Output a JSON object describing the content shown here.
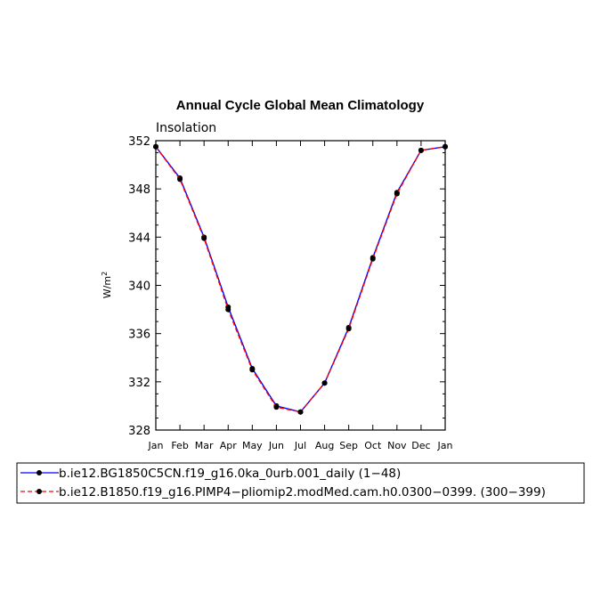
{
  "chart_data": {
    "type": "line",
    "title": "Annual Cycle Global Mean Climatology",
    "subtitle": "Insolation",
    "ylabel": "W/m",
    "ylabel_sup": "2",
    "xlabel": "",
    "categories": [
      "Jan",
      "Feb",
      "Mar",
      "Apr",
      "May",
      "Jun",
      "Jul",
      "Aug",
      "Sep",
      "Oct",
      "Nov",
      "Dec",
      "Jan"
    ],
    "ylim": [
      328,
      352
    ],
    "yticks": [
      328,
      332,
      336,
      340,
      344,
      348,
      352
    ],
    "grid": false,
    "legend_position": "bottom",
    "series": [
      {
        "name": "b.ie12.BG1850C5CN.f19_g16.0ka_0urb.001_daily (1−48)",
        "color": "#0000ff",
        "dash": "solid",
        "values": [
          351.5,
          348.9,
          344.0,
          338.2,
          333.1,
          330.0,
          329.5,
          331.9,
          336.5,
          342.3,
          347.7,
          351.2,
          351.5
        ]
      },
      {
        "name": "b.ie12.B1850.f19_g16.PIMP4−pliomip2.modMed.cam.h0.0300−0399. (300−399)",
        "color": "#ff0000",
        "dash": "dashed",
        "values": [
          351.5,
          348.8,
          343.9,
          338.0,
          333.0,
          329.9,
          329.5,
          331.9,
          336.4,
          342.2,
          347.6,
          351.2,
          351.5
        ]
      }
    ]
  }
}
